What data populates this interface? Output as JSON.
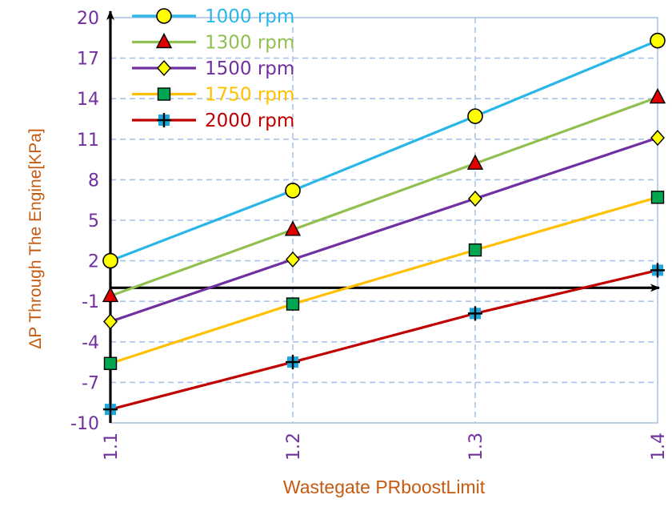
{
  "chart_data": {
    "type": "line",
    "xlabel": "Wastegate PRboostLimit",
    "ylabel": "ΔP Through The Engine[KPa]",
    "x": [
      "1.1",
      "1.2",
      "1.3",
      "1.4"
    ],
    "xlim": [
      1.1,
      1.4
    ],
    "ylim": [
      -10,
      20
    ],
    "yticks": [
      "20",
      "17",
      "14",
      "11",
      "8",
      "5",
      "2",
      "-1",
      "-4",
      "-7",
      "-10"
    ],
    "grid": true,
    "legend_position": "top-left",
    "series": [
      {
        "name": "1000 rpm",
        "values": [
          2.0,
          7.2,
          12.7,
          18.3
        ],
        "color": "#2ab7e8",
        "marker": "circle",
        "marker_fill": "#ffff00"
      },
      {
        "name": "1300 rpm",
        "values": [
          -0.6,
          4.3,
          9.2,
          14.1
        ],
        "color": "#92c050",
        "marker": "triangle",
        "marker_fill": "#e00000"
      },
      {
        "name": "1500 rpm",
        "values": [
          -2.5,
          2.1,
          6.6,
          11.1
        ],
        "color": "#7030a0",
        "marker": "diamond",
        "marker_fill": "#ffff00"
      },
      {
        "name": "1750 rpm",
        "values": [
          -5.6,
          -1.2,
          2.8,
          6.7
        ],
        "color": "#ffc000",
        "marker": "square",
        "marker_fill": "#00a650"
      },
      {
        "name": "2000 rpm",
        "values": [
          -9.0,
          -5.5,
          -1.9,
          1.3
        ],
        "color": "#c00000",
        "marker": "plus-square",
        "marker_fill": "#1ca8dd"
      }
    ]
  }
}
